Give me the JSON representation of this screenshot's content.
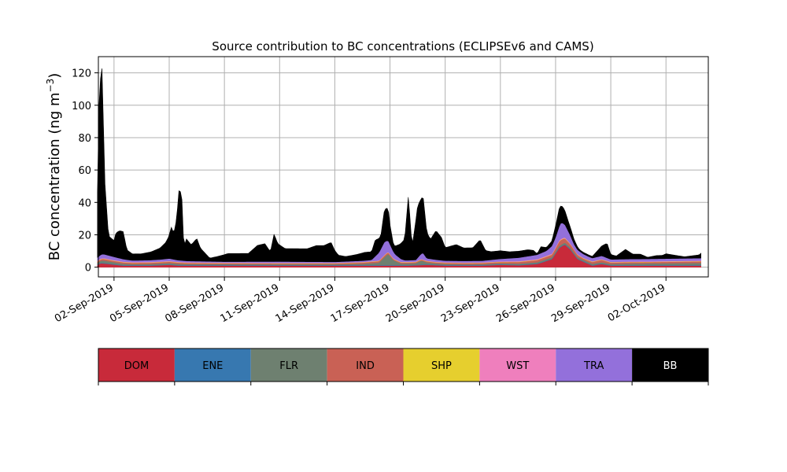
{
  "chart_data": {
    "type": "area",
    "title": "Source contribution to BC concentrations (ECLIPSEv6 and CAMS)",
    "ylabel": "BC concentration (ng m⁻³)",
    "ylabel_main": "BC concentration (ng m",
    "ylabel_sup": "−3",
    "ylabel_close": ")",
    "xlabel": "",
    "ylim": [
      -6,
      130
    ],
    "xlim": [
      -0.85,
      32.3
    ],
    "grid": true,
    "yticks": [
      0,
      20,
      40,
      60,
      80,
      100,
      120
    ],
    "xticks": [
      {
        "day": 0,
        "label": "02-Sep-2019"
      },
      {
        "day": 3,
        "label": "05-Sep-2019"
      },
      {
        "day": 6,
        "label": "08-Sep-2019"
      },
      {
        "day": 9,
        "label": "11-Sep-2019"
      },
      {
        "day": 12,
        "label": "14-Sep-2019"
      },
      {
        "day": 15,
        "label": "17-Sep-2019"
      },
      {
        "day": 18,
        "label": "20-Sep-2019"
      },
      {
        "day": 21,
        "label": "23-Sep-2019"
      },
      {
        "day": 24,
        "label": "26-Sep-2019"
      },
      {
        "day": 27,
        "label": "29-Sep-2019"
      },
      {
        "day": 30,
        "label": "02-Oct-2019"
      }
    ],
    "x_unit": "days since 02-Sep-2019",
    "series": [
      {
        "name": "DOM",
        "color": "#c82a3a",
        "points": [
          [
            -0.9,
            1.5
          ],
          [
            -0.7,
            2.5
          ],
          [
            -0.3,
            2
          ],
          [
            0.5,
            1
          ],
          [
            2,
            1
          ],
          [
            3,
            1.5
          ],
          [
            3.5,
            1
          ],
          [
            6,
            1
          ],
          [
            9,
            1
          ],
          [
            12,
            1
          ],
          [
            14,
            1
          ],
          [
            16,
            1
          ],
          [
            17,
            1.5
          ],
          [
            18,
            1
          ],
          [
            20,
            1
          ],
          [
            21,
            1.5
          ],
          [
            22,
            1.2
          ],
          [
            23,
            2
          ],
          [
            23.8,
            5
          ],
          [
            24.2,
            12
          ],
          [
            24.5,
            14
          ],
          [
            24.8,
            11
          ],
          [
            25.2,
            5
          ],
          [
            25.8,
            2
          ],
          [
            26,
            1
          ],
          [
            26.5,
            2
          ],
          [
            27,
            1
          ],
          [
            29,
            1
          ],
          [
            31,
            1
          ],
          [
            31.9,
            1
          ]
        ]
      },
      {
        "name": "ENE",
        "color": "#3778b0",
        "points": [
          [
            -0.9,
            0.3
          ],
          [
            5,
            0.3
          ],
          [
            10,
            0.3
          ],
          [
            16,
            0.3
          ],
          [
            21,
            0.3
          ],
          [
            26,
            0.3
          ],
          [
            31.9,
            0.3
          ]
        ]
      },
      {
        "name": "FLR",
        "color": "#6e8070",
        "points": [
          [
            -0.9,
            1
          ],
          [
            -0.6,
            1.5
          ],
          [
            0,
            1.2
          ],
          [
            1,
            0.6
          ],
          [
            3,
            0.8
          ],
          [
            3.5,
            0.8
          ],
          [
            4,
            0.6
          ],
          [
            6,
            0.6
          ],
          [
            9,
            0.5
          ],
          [
            12,
            0.5
          ],
          [
            13.5,
            0.8
          ],
          [
            14.4,
            1.5
          ],
          [
            14.7,
            5
          ],
          [
            14.9,
            7
          ],
          [
            15.2,
            3
          ],
          [
            15.6,
            1
          ],
          [
            16.4,
            1
          ],
          [
            16.7,
            2.5
          ],
          [
            17,
            1.2
          ],
          [
            17.5,
            0.8
          ],
          [
            19,
            0.5
          ],
          [
            21,
            0.6
          ],
          [
            23,
            0.8
          ],
          [
            24.5,
            1
          ],
          [
            26,
            0.8
          ],
          [
            27,
            0.8
          ],
          [
            28,
            1
          ],
          [
            31.9,
            1.3
          ]
        ]
      },
      {
        "name": "IND",
        "color": "#c96155",
        "points": [
          [
            -0.9,
            0.8
          ],
          [
            -0.5,
            1
          ],
          [
            0,
            0.8
          ],
          [
            3,
            0.8
          ],
          [
            6,
            0.5
          ],
          [
            9,
            0.5
          ],
          [
            12,
            0.5
          ],
          [
            14.8,
            1
          ],
          [
            15.2,
            0.6
          ],
          [
            17,
            0.6
          ],
          [
            21,
            0.8
          ],
          [
            23.8,
            1.5
          ],
          [
            24.3,
            3
          ],
          [
            24.8,
            2
          ],
          [
            25.5,
            0.8
          ],
          [
            26.5,
            1.5
          ],
          [
            27,
            0.8
          ],
          [
            29,
            0.8
          ],
          [
            31.9,
            1
          ]
        ]
      },
      {
        "name": "SHP",
        "color": "#e6cf2e",
        "points": [
          [
            -0.9,
            0.2
          ],
          [
            10,
            0.2
          ],
          [
            20,
            0.2
          ],
          [
            31.9,
            0.2
          ]
        ]
      },
      {
        "name": "WST",
        "color": "#ef7fbd",
        "points": [
          [
            -0.9,
            0.3
          ],
          [
            10,
            0.2
          ],
          [
            20,
            0.2
          ],
          [
            24.3,
            0.5
          ],
          [
            25,
            0.2
          ],
          [
            31.9,
            0.3
          ]
        ]
      },
      {
        "name": "TRA",
        "color": "#9370db",
        "points": [
          [
            -0.9,
            2
          ],
          [
            -0.6,
            2.5
          ],
          [
            0,
            2
          ],
          [
            1,
            1
          ],
          [
            2.5,
            1.2
          ],
          [
            3,
            1.5
          ],
          [
            3.5,
            1
          ],
          [
            4,
            0.8
          ],
          [
            6,
            0.6
          ],
          [
            9,
            0.8
          ],
          [
            12,
            0.6
          ],
          [
            14,
            0.8
          ],
          [
            14.7,
            8
          ],
          [
            14.9,
            7
          ],
          [
            15.3,
            3
          ],
          [
            15.8,
            1
          ],
          [
            16.4,
            1
          ],
          [
            16.8,
            4
          ],
          [
            17,
            1.5
          ],
          [
            18,
            1
          ],
          [
            20,
            1
          ],
          [
            21,
            1.5
          ],
          [
            23.5,
            3
          ],
          [
            24,
            6
          ],
          [
            24.3,
            10
          ],
          [
            24.6,
            7
          ],
          [
            25,
            3
          ],
          [
            25.8,
            2
          ],
          [
            26.6,
            2
          ],
          [
            27,
            1.5
          ],
          [
            28,
            1.5
          ],
          [
            31.9,
            1.5
          ]
        ]
      },
      {
        "name": "BB",
        "color": "#000000",
        "points": [
          [
            -0.9,
            40
          ],
          [
            -0.8,
            104
          ],
          [
            -0.65,
            115
          ],
          [
            -0.5,
            45
          ],
          [
            -0.3,
            12
          ],
          [
            0,
            10
          ],
          [
            0.1,
            15
          ],
          [
            0.3,
            17
          ],
          [
            0.5,
            17
          ],
          [
            0.7,
            6
          ],
          [
            1,
            4
          ],
          [
            1.5,
            4
          ],
          [
            2,
            5
          ],
          [
            2.5,
            7
          ],
          [
            2.8,
            10
          ],
          [
            3,
            14
          ],
          [
            3.1,
            20
          ],
          [
            3.25,
            16
          ],
          [
            3.4,
            25
          ],
          [
            3.55,
            46
          ],
          [
            3.7,
            37
          ],
          [
            3.8,
            6
          ],
          [
            3.9,
            14
          ],
          [
            4.2,
            10
          ],
          [
            4.5,
            14
          ],
          [
            4.7,
            8
          ],
          [
            5.2,
            2
          ],
          [
            5.6,
            3
          ],
          [
            6.2,
            5
          ],
          [
            6.7,
            5
          ],
          [
            7.3,
            5
          ],
          [
            7.8,
            10
          ],
          [
            8.2,
            11
          ],
          [
            8.5,
            6
          ],
          [
            8.7,
            17
          ],
          [
            8.9,
            11
          ],
          [
            9.3,
            8
          ],
          [
            10,
            8
          ],
          [
            10.5,
            8
          ],
          [
            11,
            10
          ],
          [
            11.4,
            10
          ],
          [
            11.8,
            12
          ],
          [
            12,
            7
          ],
          [
            12.2,
            4
          ],
          [
            12.6,
            3
          ],
          [
            13.2,
            4
          ],
          [
            13.6,
            5
          ],
          [
            14,
            5
          ],
          [
            14.2,
            10
          ],
          [
            14.5,
            8
          ],
          [
            14.7,
            20
          ],
          [
            14.9,
            20
          ],
          [
            15,
            12
          ],
          [
            15.2,
            4
          ],
          [
            15.5,
            8
          ],
          [
            15.8,
            13
          ],
          [
            16,
            40
          ],
          [
            16.2,
            8
          ],
          [
            16.5,
            32
          ],
          [
            16.8,
            35
          ],
          [
            17,
            16
          ],
          [
            17.2,
            12
          ],
          [
            17.5,
            18
          ],
          [
            17.8,
            14
          ],
          [
            18,
            8
          ],
          [
            18.6,
            10
          ],
          [
            19,
            8
          ],
          [
            19.5,
            8
          ],
          [
            19.9,
            13
          ],
          [
            20.2,
            6
          ],
          [
            20.5,
            5
          ],
          [
            21,
            5
          ],
          [
            21.5,
            4
          ],
          [
            22,
            4
          ],
          [
            22.5,
            4
          ],
          [
            22.8,
            3
          ],
          [
            23,
            0.5
          ],
          [
            23.2,
            4
          ],
          [
            23.5,
            2
          ],
          [
            23.8,
            3
          ],
          [
            24.2,
            11
          ],
          [
            24.4,
            10
          ],
          [
            24.7,
            6
          ],
          [
            25,
            3
          ],
          [
            25.3,
            1
          ],
          [
            26,
            1
          ],
          [
            26.5,
            6
          ],
          [
            26.8,
            9
          ],
          [
            27,
            3
          ],
          [
            27.3,
            2
          ],
          [
            27.8,
            6
          ],
          [
            28.2,
            3
          ],
          [
            28.6,
            3
          ],
          [
            29,
            1
          ],
          [
            29.5,
            2
          ],
          [
            29.8,
            2
          ],
          [
            30,
            3
          ],
          [
            30.5,
            2
          ],
          [
            31,
            1
          ],
          [
            31.8,
            2
          ],
          [
            31.9,
            3
          ]
        ]
      }
    ],
    "legend": [
      {
        "name": "DOM",
        "color": "#c82a3a",
        "text_color": "#000000"
      },
      {
        "name": "ENE",
        "color": "#3778b0",
        "text_color": "#000000"
      },
      {
        "name": "FLR",
        "color": "#6e8070",
        "text_color": "#000000"
      },
      {
        "name": "IND",
        "color": "#c96155",
        "text_color": "#000000"
      },
      {
        "name": "SHP",
        "color": "#e6cf2e",
        "text_color": "#000000"
      },
      {
        "name": "WST",
        "color": "#ef7fbd",
        "text_color": "#000000"
      },
      {
        "name": "TRA",
        "color": "#9370db",
        "text_color": "#000000"
      },
      {
        "name": "BB",
        "color": "#000000",
        "text_color": "#ffffff"
      }
    ],
    "legend_placement": "bottom"
  }
}
